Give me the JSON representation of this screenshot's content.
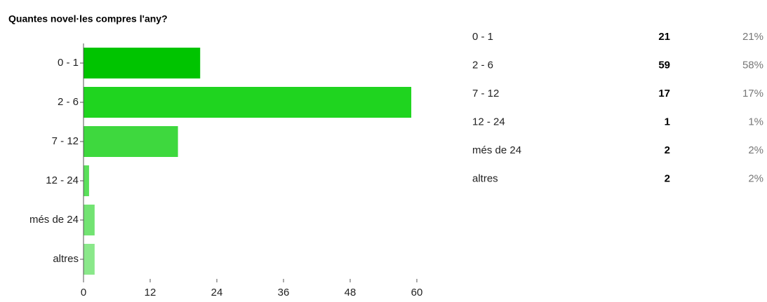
{
  "chart_data": {
    "type": "bar",
    "orientation": "horizontal",
    "title": "Quantes novel·les compres l'any?",
    "categories": [
      "0 - 1",
      "2 - 6",
      "7 - 12",
      "12 - 24",
      "més de 24",
      "altres"
    ],
    "values": [
      21,
      59,
      17,
      1,
      2,
      2
    ],
    "colors": [
      "#00c400",
      "#1fd41f",
      "#3ed83e",
      "#5adf5a",
      "#72e372",
      "#8ae88a"
    ],
    "xlim": [
      0,
      60
    ],
    "xticks": [
      0,
      12,
      24,
      36,
      48,
      60
    ]
  },
  "table": {
    "percentages": [
      "21%",
      "58%",
      "17%",
      "1%",
      "2%",
      "2%"
    ]
  }
}
